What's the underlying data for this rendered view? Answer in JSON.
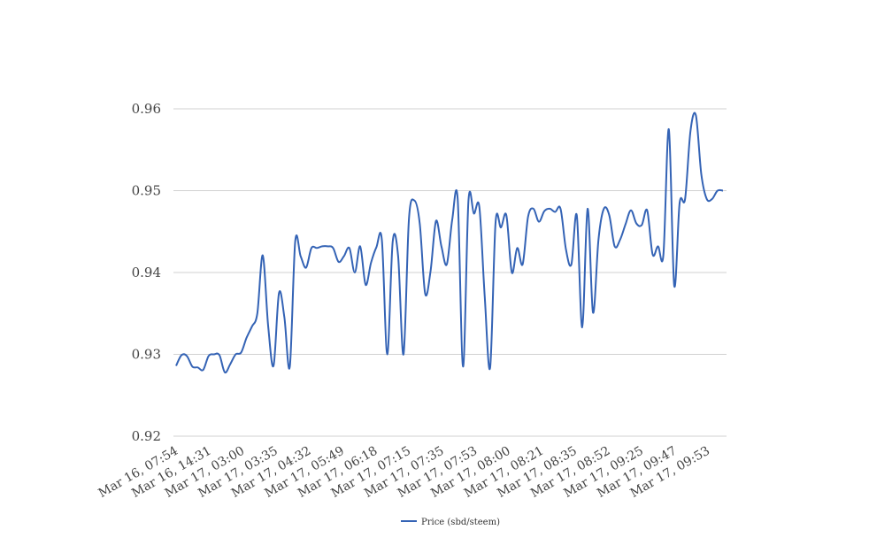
{
  "chart_data": {
    "type": "line",
    "title": "",
    "xlabel": "",
    "ylabel": "",
    "ylim": [
      0.92,
      0.96
    ],
    "yticks": [
      0.92,
      0.93,
      0.94,
      0.95,
      0.96
    ],
    "ytick_labels": [
      "0.92",
      "0.93",
      "0.94",
      "0.95",
      "0.96"
    ],
    "xtick_labels": [
      "Mar 16, 07:54",
      "Mar 16, 14:31",
      "Mar 17, 03:00",
      "Mar 17, 03:35",
      "Mar 17, 04:32",
      "Mar 17, 05:49",
      "Mar 17, 06:18",
      "Mar 17, 07:15",
      "Mar 17, 07:35",
      "Mar 17, 07:53",
      "Mar 17, 08:00",
      "Mar 17, 08:21",
      "Mar 17, 08:35",
      "Mar 17, 08:52",
      "Mar 17, 09:25",
      "Mar 17, 09:47",
      "Mar 17, 09:53"
    ],
    "grid": true,
    "legend_position": "bottom-center",
    "series": [
      {
        "name": "Price (sbd/steem)",
        "color": "#3463b5",
        "values": [
          0.9286,
          0.9299,
          0.9298,
          0.9285,
          0.9284,
          0.9281,
          0.9298,
          0.93,
          0.9299,
          0.9278,
          0.9288,
          0.93,
          0.9302,
          0.932,
          0.9334,
          0.935,
          0.9421,
          0.9335,
          0.9286,
          0.9375,
          0.9345,
          0.9285,
          0.9438,
          0.942,
          0.9406,
          0.943,
          0.943,
          0.9432,
          0.9432,
          0.943,
          0.9413,
          0.942,
          0.943,
          0.94,
          0.9432,
          0.9385,
          0.9412,
          0.9431,
          0.944,
          0.93,
          0.9438,
          0.942,
          0.93,
          0.9465,
          0.9488,
          0.946,
          0.9374,
          0.9402,
          0.9463,
          0.9432,
          0.941,
          0.9465,
          0.949,
          0.9285,
          0.9488,
          0.9472,
          0.948,
          0.937,
          0.9284,
          0.9461,
          0.9455,
          0.947,
          0.94,
          0.943,
          0.941,
          0.9468,
          0.9478,
          0.9462,
          0.9475,
          0.9478,
          0.9474,
          0.9478,
          0.9428,
          0.941,
          0.947,
          0.9333,
          0.9478,
          0.9351,
          0.944,
          0.9478,
          0.947,
          0.9432,
          0.944,
          0.9459,
          0.9476,
          0.946,
          0.9458,
          0.9476,
          0.9422,
          0.9432,
          0.9422,
          0.9575,
          0.9384,
          0.9485,
          0.949,
          0.9573,
          0.9592,
          0.952,
          0.949,
          0.949,
          0.95,
          0.95
        ]
      }
    ]
  }
}
